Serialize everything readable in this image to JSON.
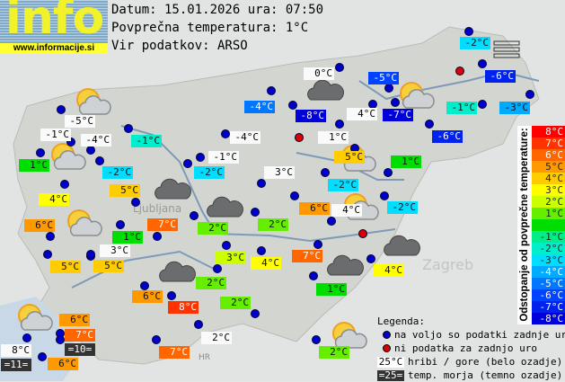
{
  "logo": {
    "text": "info",
    "url": "www.informacije.si"
  },
  "header": {
    "date_line": "Datum: 15.01.2026 ura: 07:50",
    "avg_line": "Povprečna temperatura: 1°C",
    "source_line": "Vir podatkov: ARSO"
  },
  "average_temp": 1,
  "stations": [
    {
      "temp": "-2°C",
      "kind": "deviation",
      "status": "ok"
    },
    {
      "temp": "0°C",
      "kind": "mountain",
      "status": "ok"
    },
    {
      "temp": "-5°C",
      "kind": "deviation",
      "status": "ok"
    },
    {
      "temp": "-6°C",
      "kind": "deviation",
      "status": "ok"
    },
    {
      "temp": "-4°C",
      "kind": "deviation",
      "status": "ok"
    },
    {
      "temp": "-8°C",
      "kind": "deviation",
      "status": "ok"
    },
    {
      "temp": "4°C",
      "kind": "mountain",
      "status": "ok"
    },
    {
      "temp": "-7°C",
      "kind": "deviation",
      "status": "ok"
    },
    {
      "temp": "-1°C",
      "kind": "deviation",
      "status": "ok"
    },
    {
      "temp": "-3°C",
      "kind": "deviation",
      "status": "ok"
    },
    {
      "temp": "-6°C",
      "kind": "deviation",
      "status": "ok"
    },
    {
      "temp": "1°C",
      "kind": "mountain",
      "status": "ok"
    },
    {
      "temp": "-5°C",
      "kind": "mountain",
      "status": "ok"
    },
    {
      "temp": "-1°C",
      "kind": "mountain",
      "status": "ok"
    },
    {
      "temp": "-4°C",
      "kind": "mountain",
      "status": "ok"
    },
    {
      "temp": "1°C",
      "kind": "deviation",
      "status": "ok"
    },
    {
      "temp": "-1°C",
      "kind": "deviation",
      "status": "ok"
    },
    {
      "temp": "-4°C",
      "kind": "mountain",
      "status": "ok"
    },
    {
      "temp": "-2°C",
      "kind": "deviation",
      "status": "ok"
    },
    {
      "temp": "-1°C",
      "kind": "mountain",
      "status": "ok"
    },
    {
      "temp": "-2°C",
      "kind": "deviation",
      "status": "ok"
    },
    {
      "temp": "3°C",
      "kind": "mountain",
      "status": "ok"
    },
    {
      "temp": "5°C",
      "kind": "deviation",
      "status": "ok"
    },
    {
      "temp": "4°C",
      "kind": "deviation",
      "status": "ok"
    },
    {
      "temp": "5°C",
      "kind": "deviation",
      "status": "ok"
    },
    {
      "temp": "1°C",
      "kind": "deviation",
      "status": "ok"
    },
    {
      "temp": "-2°C",
      "kind": "deviation",
      "status": "ok"
    },
    {
      "temp": "6°C",
      "kind": "deviation",
      "status": "ok"
    },
    {
      "temp": "4°C",
      "kind": "mountain",
      "status": "ok"
    },
    {
      "temp": "-2°C",
      "kind": "deviation",
      "status": "ok"
    },
    {
      "temp": "6°C",
      "kind": "deviation",
      "status": "ok"
    },
    {
      "temp": "7°C",
      "kind": "deviation",
      "status": "ok"
    },
    {
      "temp": "1°C",
      "kind": "deviation",
      "status": "ok"
    },
    {
      "temp": "2°C",
      "kind": "deviation",
      "status": "ok"
    },
    {
      "temp": "2°C",
      "kind": "deviation",
      "status": "ok"
    },
    {
      "temp": "3°C",
      "kind": "mountain",
      "status": "ok"
    },
    {
      "temp": "3°C",
      "kind": "deviation",
      "status": "ok"
    },
    {
      "temp": "4°C",
      "kind": "deviation",
      "status": "ok"
    },
    {
      "temp": "2°C",
      "kind": "deviation",
      "status": "ok"
    },
    {
      "temp": "7°C",
      "kind": "deviation",
      "status": "ok"
    },
    {
      "temp": "4°C",
      "kind": "deviation",
      "status": "ok"
    },
    {
      "temp": "1°C",
      "kind": "deviation",
      "status": "ok"
    },
    {
      "temp": "5°C",
      "kind": "deviation",
      "status": "ok"
    },
    {
      "temp": "5°C",
      "kind": "deviation",
      "status": "ok"
    },
    {
      "temp": "6°C",
      "kind": "deviation",
      "status": "ok"
    },
    {
      "temp": "8°C",
      "kind": "deviation",
      "status": "ok"
    },
    {
      "temp": "2°C",
      "kind": "deviation",
      "status": "ok"
    },
    {
      "temp": "6°C",
      "kind": "deviation",
      "status": "ok"
    },
    {
      "temp": "7°C",
      "kind": "deviation",
      "status": "ok"
    },
    {
      "temp": "=10=",
      "kind": "sea",
      "status": "ok"
    },
    {
      "temp": "8°C",
      "kind": "mountain",
      "status": "ok"
    },
    {
      "temp": "=11=",
      "kind": "sea",
      "status": "ok"
    },
    {
      "temp": "6°C",
      "kind": "deviation",
      "status": "ok"
    },
    {
      "temp": "7°C",
      "kind": "deviation",
      "status": "ok"
    },
    {
      "temp": "2°C",
      "kind": "mountain",
      "status": "ok"
    },
    {
      "temp": "2°C",
      "kind": "deviation",
      "status": "ok"
    }
  ],
  "missing_stations_count": 3,
  "weather_icons": [
    "partly-cloudy",
    "partly-cloudy",
    "partly-cloudy",
    "partly-cloudy",
    "partly-cloudy",
    "partly-cloudy",
    "partly-cloudy",
    "partly-cloudy",
    "overcast",
    "overcast",
    "overcast",
    "overcast",
    "overcast",
    "overcast",
    "fog"
  ],
  "map_labels": {
    "city_capital": "Ljubljana",
    "city_zagreb": "Zagreb",
    "country_hr": "HR"
  },
  "scale": {
    "title": "Odstopanje od povprečne temperature:",
    "rows": [
      {
        "label": "8°C",
        "dev": 8,
        "color": "#ff0000"
      },
      {
        "label": "7°C",
        "dev": 7,
        "color": "#ff3300"
      },
      {
        "label": "6°C",
        "dev": 6,
        "color": "#ff6600"
      },
      {
        "label": "5°C",
        "dev": 5,
        "color": "#ff9900"
      },
      {
        "label": "4°C",
        "dev": 4,
        "color": "#ffcc00"
      },
      {
        "label": "3°C",
        "dev": 3,
        "color": "#ffff00"
      },
      {
        "label": "2°C",
        "dev": 2,
        "color": "#ccff00"
      },
      {
        "label": "1°C",
        "dev": 1,
        "color": "#66ee00"
      },
      {
        "label": "",
        "dev": 0,
        "color": "#00dd00"
      },
      {
        "label": "-1°C",
        "dev": -1,
        "color": "#00ee88"
      },
      {
        "label": "-2°C",
        "dev": -2,
        "color": "#00eecc"
      },
      {
        "label": "-3°C",
        "dev": -3,
        "color": "#00ddff"
      },
      {
        "label": "-4°C",
        "dev": -4,
        "color": "#00aaff"
      },
      {
        "label": "-5°C",
        "dev": -5,
        "color": "#0077ff"
      },
      {
        "label": "-6°C",
        "dev": -6,
        "color": "#0044ff"
      },
      {
        "label": "-7°C",
        "dev": -7,
        "color": "#0022ee"
      },
      {
        "label": "-8°C",
        "dev": -8,
        "color": "#0000dd"
      }
    ]
  },
  "legend": {
    "title": "Legenda:",
    "ok_dot": "na voljo so podatki zadnje ure",
    "missing_dot": "ni podatka za zadnjo uro",
    "mountain_sample": "25°C",
    "mountain_text": "hribi / gore (belo ozadje)",
    "sea_sample": "=25=",
    "sea_text": "temp. morja (temno ozadje)",
    "ok_color": "#0000cc",
    "missing_color": "#dd0000"
  }
}
